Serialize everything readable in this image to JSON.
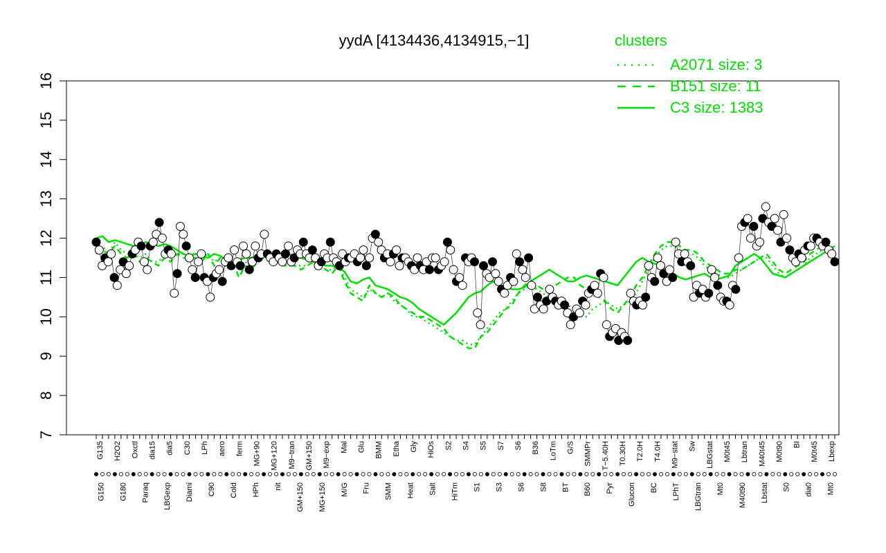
{
  "chart_data": {
    "type": "line",
    "title": "yydA [4134436,4134915,−1]",
    "xlabel": "",
    "ylabel": "",
    "ylim": [
      7,
      16
    ],
    "yticks": [
      "7",
      "8",
      "9",
      "10",
      "11",
      "12",
      "13",
      "14",
      "15",
      "16"
    ],
    "grid": false,
    "legend": {
      "title": "clusters",
      "placement": "top-right",
      "entries": [
        {
          "label": "A2071 size: 3",
          "style": "dotted"
        },
        {
          "label": "B151 size: 11",
          "style": "dashed"
        },
        {
          "label": "C3 size: 1383",
          "style": "solid"
        }
      ]
    },
    "line_color": "#00e000",
    "x_tick_labels_top": [
      "G135",
      "H2O2",
      "Oxctl",
      "dia15",
      "dia5",
      "C30",
      "LPh",
      "aero",
      "ferm",
      "MG+90",
      "MG+120",
      "M9−tran",
      "GM+150",
      "M9−exp",
      "Mal",
      "Glu",
      "BMM",
      "Etha",
      "Gly",
      "HiOs",
      "S2",
      "S4",
      "S5",
      "S7",
      "S6",
      "B36",
      "LoTm",
      "G/S",
      "SMMPr",
      "T−5.40H",
      "T0.30H",
      "T2.0H",
      "T4.0H",
      "M9−stat",
      "Sw",
      "LBGstat",
      "M0t45",
      "Lbtran",
      "M40t45",
      "M0t90",
      "BI",
      "M0t45",
      "Lbexp"
    ],
    "x_tick_labels_bottom": [
      "G150",
      "G180",
      "Paraq",
      "LBGexp",
      "Diami",
      "C90",
      "Cold",
      "HPh",
      "nit",
      "GM+150",
      "MG+150",
      "M/G",
      "Fru",
      "SMM",
      "Heat",
      "Salt",
      "HiTm",
      "S1",
      "S3",
      "S6",
      "S8",
      "BT",
      "B60",
      "Pyr",
      "Glucon",
      "BC",
      "LPhT",
      "LBGtran",
      "Mt0",
      "M40t90",
      "Lbstat",
      "S0",
      "dia0",
      "Mt0"
    ],
    "series": [
      {
        "style": "solid",
        "y": [
          12.0,
          12.05,
          11.9,
          11.95,
          11.9,
          11.85,
          11.8,
          11.85,
          11.9,
          11.85,
          11.8,
          11.85,
          11.8,
          11.7,
          11.6,
          11.55,
          11.6,
          11.55,
          11.5,
          11.6,
          11.55,
          11.45,
          11.35,
          11.45,
          11.5,
          11.5,
          11.55,
          11.6,
          11.55,
          11.5,
          11.55,
          11.6,
          11.55,
          11.5,
          11.45,
          11.4,
          11.35,
          11.3,
          11.3,
          11.25,
          11.15,
          10.9,
          10.85,
          10.95,
          11.0,
          10.8,
          10.75,
          10.7,
          10.6,
          10.5,
          10.45,
          10.35,
          10.2,
          10.1,
          10.0,
          9.9,
          9.8,
          9.95,
          10.1,
          10.3,
          10.5,
          10.6,
          10.65,
          10.8,
          10.9,
          10.8,
          10.75,
          10.7,
          10.7,
          10.75,
          10.9,
          11.0,
          11.1,
          11.2,
          11.1,
          11.0,
          10.9,
          10.9,
          11.0,
          11.05,
          11.0,
          10.95,
          10.9,
          10.85,
          10.8,
          11.0,
          11.2,
          11.4,
          11.5,
          11.4,
          11.35,
          11.3,
          11.2,
          11.1,
          11.0,
          10.95,
          11.0,
          11.05,
          11.1,
          11.0,
          10.95,
          11.0,
          11.05,
          11.3,
          11.4,
          11.5,
          11.6,
          11.5,
          11.3,
          11.1,
          11.05,
          11.0,
          11.1,
          11.2,
          11.3,
          11.4,
          11.5,
          11.6,
          11.7,
          11.8
        ]
      },
      {
        "style": "dashed",
        "y": [
          11.6,
          11.7,
          11.6,
          11.8,
          11.6,
          11.5,
          11.6,
          11.4,
          11.5,
          11.4,
          11.3,
          11.5,
          11.4,
          11.6,
          11.5,
          11.5,
          11.5,
          11.4,
          11.6,
          11.3,
          11.5,
          11.2,
          11.4,
          11.0,
          11.3,
          11.2,
          11.4,
          11.5,
          11.6,
          11.4,
          11.3,
          11.3,
          11.3,
          11.2,
          11.3,
          11.4,
          11.3,
          11.2,
          11.1,
          11.3,
          10.9,
          10.6,
          10.5,
          10.4,
          10.8,
          10.6,
          10.5,
          10.6,
          10.5,
          10.3,
          10.2,
          10.1,
          10.0,
          10.0,
          9.9,
          9.8,
          9.7,
          9.5,
          9.4,
          9.3,
          9.2,
          9.2,
          9.5,
          9.6,
          9.8,
          10.0,
          10.2,
          10.3,
          10.6,
          10.8,
          10.9,
          10.8,
          10.7,
          10.7,
          10.8,
          10.9,
          11.0,
          11.0,
          10.8,
          10.7,
          10.6,
          10.5,
          10.4,
          10.2,
          10.1,
          10.3,
          10.5,
          10.8,
          11.0,
          11.3,
          11.6,
          11.8,
          11.9,
          11.9,
          11.8,
          11.7,
          11.7,
          11.6,
          11.4,
          11.3,
          11.2,
          11.1,
          11.1,
          11.2,
          11.2,
          11.3,
          11.4,
          11.5,
          11.6,
          11.4,
          11.2,
          11.1,
          11.2,
          11.3,
          11.4,
          11.6,
          11.7,
          11.8,
          11.8,
          11.7
        ]
      },
      {
        "style": "dotted",
        "y": [
          11.7,
          11.8,
          11.6,
          11.9,
          11.7,
          11.6,
          11.6,
          11.5,
          11.6,
          11.4,
          11.4,
          11.6,
          11.5,
          11.6,
          11.6,
          11.6,
          11.6,
          11.5,
          11.6,
          11.4,
          11.5,
          11.3,
          11.4,
          11.2,
          11.4,
          11.3,
          11.5,
          11.5,
          11.6,
          11.5,
          11.4,
          11.3,
          11.3,
          11.3,
          11.3,
          11.4,
          11.3,
          11.2,
          11.2,
          11.3,
          11.0,
          10.7,
          10.6,
          10.5,
          10.7,
          10.6,
          10.5,
          10.6,
          10.4,
          10.3,
          10.2,
          10.0,
          10.0,
          9.9,
          9.8,
          9.7,
          9.6,
          9.5,
          9.4,
          9.4,
          9.3,
          9.3,
          9.5,
          9.7,
          9.9,
          10.1,
          10.2,
          10.4,
          10.6,
          10.7,
          10.8,
          10.7,
          10.6,
          10.5,
          10.5,
          10.4,
          10.3,
          10.2,
          10.1,
          10.0,
          10.2,
          10.3,
          10.4,
          10.3,
          10.2,
          10.3,
          10.4,
          10.6,
          10.9,
          11.2,
          11.5,
          11.7,
          11.8,
          11.8,
          11.7,
          11.6,
          11.6,
          11.5,
          11.3,
          11.2,
          11.1,
          11.0,
          11.0,
          11.1,
          11.2,
          11.3,
          11.4,
          11.5,
          11.5,
          11.3,
          11.1,
          11.0,
          11.1,
          11.2,
          11.3,
          11.5,
          11.6,
          11.7,
          11.8,
          11.7
        ]
      },
      {
        "style": "points",
        "y": [
          11.9,
          11.7,
          11.3,
          11.5,
          11.4,
          11.6,
          11.0,
          10.8,
          11.2,
          11.4,
          11.1,
          11.3,
          11.6,
          11.7,
          11.9,
          11.8,
          11.4,
          11.2,
          11.8,
          11.9,
          12.1,
          12.4,
          12.0,
          11.6,
          11.7,
          11.6,
          10.6,
          11.1,
          12.3,
          12.1,
          11.8,
          11.5,
          11.2,
          11.0,
          11.4,
          11.6,
          11.0,
          10.9,
          10.5,
          11.0,
          11.1,
          11.2,
          10.9,
          11.4,
          11.5,
          11.3,
          11.7,
          11.4,
          11.3,
          11.8,
          11.6,
          11.2,
          11.4,
          11.8,
          11.5,
          11.6,
          12.1,
          11.6,
          11.5,
          11.4,
          11.6,
          11.5,
          11.4,
          11.6,
          11.8,
          11.4,
          11.5,
          11.7,
          11.6,
          11.9,
          11.6,
          11.5,
          11.7,
          11.5,
          11.3,
          11.4,
          11.6,
          11.5,
          11.9,
          11.5,
          11.4,
          11.3,
          11.6,
          11.4,
          11.5,
          11.5,
          11.6,
          11.4,
          11.5,
          11.7,
          11.3,
          11.5,
          12.0,
          12.1,
          11.9,
          11.7,
          11.5,
          11.6,
          11.4,
          11.6,
          11.7,
          11.3,
          11.5,
          11.5,
          11.4,
          11.3,
          11.2,
          11.5,
          11.3,
          11.2,
          11.4,
          11.2,
          11.5,
          11.5,
          11.2,
          11.3,
          11.4,
          11.9,
          11.7,
          11.2,
          10.9,
          11.0,
          10.8,
          11.5,
          11.4,
          11.5,
          11.4,
          10.1,
          9.8,
          11.3,
          11.1,
          11.0,
          11.4,
          11.1,
          10.9,
          10.7,
          10.6,
          10.8,
          11.0,
          10.9,
          11.6,
          11.4,
          11.2,
          11.0,
          11.5,
          10.8,
          10.2,
          10.5,
          10.3,
          10.2,
          10.4,
          10.7,
          10.5,
          10.4,
          10.3,
          10.4,
          10.3,
          10.1,
          9.8,
          10.0,
          10.2,
          10.1,
          10.4,
          10.3,
          10.6,
          10.7,
          10.8,
          10.6,
          11.1,
          11.0,
          9.8,
          9.5,
          9.6,
          9.7,
          9.4,
          9.6,
          9.5,
          9.4,
          10.6,
          10.4,
          10.3,
          10.4,
          10.3,
          10.5,
          11.3,
          11.0,
          10.9,
          11.5,
          11.3,
          11.1,
          10.9,
          11.2,
          11.0,
          11.9,
          11.6,
          11.4,
          11.6,
          11.4,
          11.3,
          10.5,
          10.8,
          10.6,
          10.7,
          10.5,
          10.6,
          11.2,
          11.0,
          10.8,
          10.5,
          10.4,
          10.4,
          10.3,
          10.8,
          10.7,
          11.5,
          12.3,
          12.4,
          12.5,
          12.0,
          12.3,
          11.8,
          11.9,
          12.5,
          12.8,
          12.4,
          12.3,
          12.5,
          12.2,
          11.9,
          12.6,
          12.0,
          11.7,
          11.5,
          11.4,
          11.6,
          11.5,
          11.7,
          11.8,
          11.8,
          12.0,
          12.0,
          11.9,
          11.8,
          11.9,
          11.7,
          11.6,
          11.4
        ]
      }
    ]
  }
}
